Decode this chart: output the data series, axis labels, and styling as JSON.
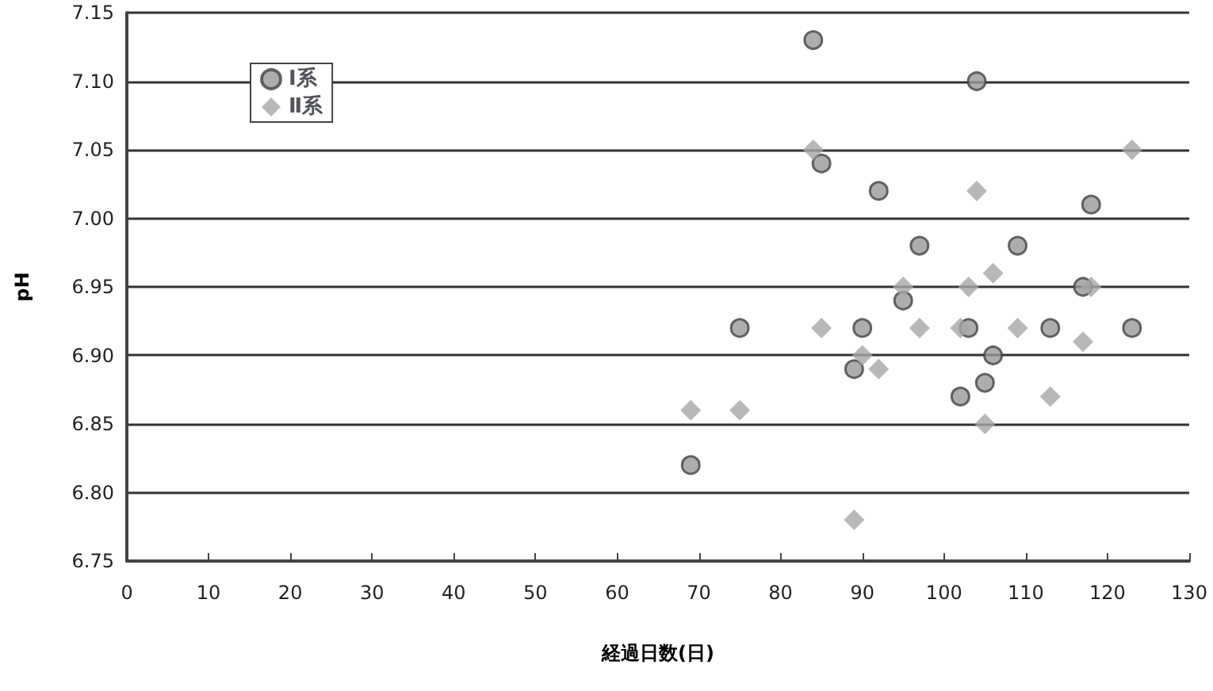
{
  "chart_data": {
    "type": "scatter",
    "xlabel": "経過日数(日)",
    "ylabel": "pH",
    "xlim": [
      0,
      130
    ],
    "xticks": [
      0,
      10,
      20,
      30,
      40,
      50,
      60,
      70,
      80,
      90,
      100,
      110,
      120,
      130
    ],
    "ylim": [
      6.75,
      7.15
    ],
    "yticks": [
      {
        "value": 6.75,
        "label": "6.75"
      },
      {
        "value": 6.8,
        "label": "6.80"
      },
      {
        "value": 6.85,
        "label": "6.85"
      },
      {
        "value": 6.9,
        "label": "6.90"
      },
      {
        "value": 6.95,
        "label": "6.95"
      },
      {
        "value": 7.0,
        "label": "7.00"
      },
      {
        "value": 7.05,
        "label": "7.05"
      },
      {
        "value": 7.1,
        "label": "7.10"
      },
      {
        "value": 7.15,
        "label": "7.15"
      }
    ],
    "grid": "y",
    "legend": "top left",
    "series": [
      {
        "name": "Ⅰ系",
        "color": "#999999",
        "marker": "circle",
        "x": [
          69,
          75,
          84,
          85,
          89,
          90,
          92,
          95,
          97,
          102,
          103,
          104,
          105,
          106,
          109,
          113,
          117,
          118,
          123
        ],
        "values": [
          6.82,
          6.92,
          7.13,
          7.04,
          6.89,
          6.92,
          7.02,
          6.94,
          6.98,
          6.87,
          6.92,
          7.1,
          6.88,
          6.9,
          6.98,
          6.92,
          6.95,
          7.01,
          6.92
        ]
      },
      {
        "name": "Ⅱ系",
        "color": "#a6a6a6",
        "marker": "diamond",
        "x": [
          69,
          75,
          84,
          85,
          89,
          90,
          92,
          95,
          97,
          102,
          103,
          104,
          105,
          106,
          109,
          113,
          117,
          118,
          123
        ],
        "values": [
          6.86,
          6.86,
          7.05,
          6.92,
          6.78,
          6.9,
          6.89,
          6.95,
          6.92,
          6.92,
          6.95,
          7.02,
          6.85,
          6.96,
          6.92,
          6.87,
          6.91,
          6.95,
          7.05
        ]
      }
    ]
  }
}
